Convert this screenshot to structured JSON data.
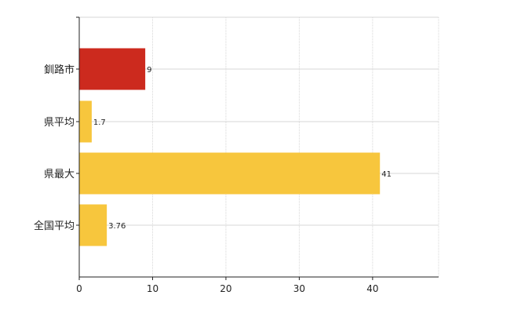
{
  "chart_data": {
    "type": "bar",
    "orientation": "horizontal",
    "categories": [
      "釧路市",
      "県平均",
      "県最大",
      "全国平均"
    ],
    "values": [
      9,
      1.7,
      41,
      3.76
    ],
    "value_labels": [
      "9",
      "1.7",
      "41",
      "3.76"
    ],
    "bar_colors": [
      "#cc2a1e",
      "#f7c63d",
      "#f7c63d",
      "#f7c63d"
    ],
    "xlim": [
      0,
      49
    ],
    "x_ticks": [
      0,
      10,
      20,
      30,
      40
    ],
    "x_tick_labels": [
      "0",
      "10",
      "20",
      "30",
      "40"
    ],
    "grid": true,
    "grid_color": "#d7d7d7",
    "axis_color": "#222222",
    "legend": "none"
  }
}
